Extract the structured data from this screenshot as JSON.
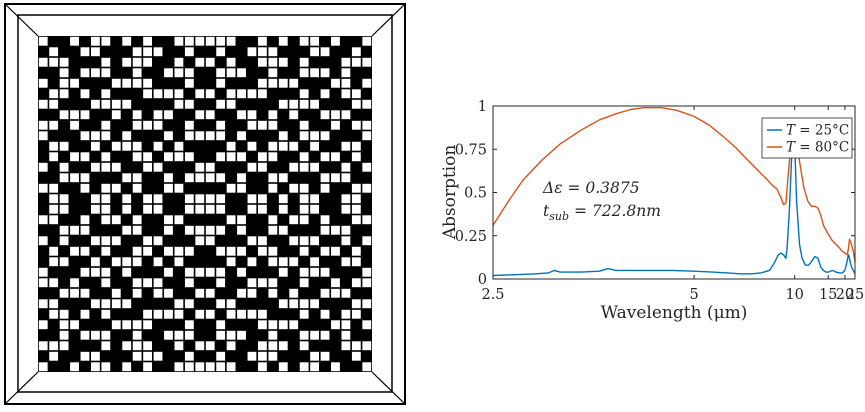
{
  "pattern_figure": {
    "grid_rows": 32,
    "grid_cols": 32,
    "cell_color": "#ffffff",
    "background_color": "#000000",
    "frame_color": "#000000"
  },
  "chart_data": {
    "type": "line",
    "title": "",
    "xlabel": "Wavelength (μm)",
    "ylabel": "Absorption",
    "xscale": "reciprocal",
    "xlim": [
      2.5,
      25
    ],
    "ylim": [
      0,
      1
    ],
    "xticks": [
      2.5,
      5,
      10,
      15,
      20,
      25
    ],
    "xtick_labels": [
      "2.5",
      "5",
      "10",
      "15",
      "20",
      "25"
    ],
    "yticks": [
      0,
      0.25,
      0.5,
      0.75,
      1
    ],
    "ytick_labels": [
      "0",
      "0.25",
      "0.5",
      "0.75",
      "1"
    ],
    "grid": false,
    "legend_position": "top-right",
    "legend": [
      {
        "T_label": "T",
        "value": " = 25°C",
        "color": "#0072BD"
      },
      {
        "T_label": "T",
        "value": " = 80°C",
        "color": "#D95319"
      }
    ],
    "annotations": {
      "line1": "Δε = 0.3875",
      "line2_sym": "t",
      "line2_sub": "sub",
      "line2_val": " = 722.8nm"
    },
    "series": [
      {
        "color": "#0072BD",
        "x": [
          2.5,
          2.65,
          2.8,
          2.9,
          2.95,
          3.0,
          3.1,
          3.2,
          3.4,
          3.5,
          3.6,
          3.8,
          4.0,
          4.5,
          5.0,
          5.5,
          6.0,
          6.5,
          7.0,
          7.5,
          8.0,
          8.3,
          8.6,
          8.8,
          9.0,
          9.2,
          9.3,
          9.5,
          9.7,
          9.85,
          10.0,
          10.2,
          10.5,
          10.8,
          11.2,
          11.6,
          12.0,
          12.5,
          13.0,
          13.5,
          14.0,
          14.5,
          15.0,
          16.0,
          17.0,
          18.0,
          19.0,
          20.0,
          20.5,
          21.0,
          21.5,
          22.0,
          22.5,
          23.0,
          24.0,
          25.0
        ],
        "y": [
          0.02,
          0.025,
          0.03,
          0.035,
          0.05,
          0.04,
          0.04,
          0.04,
          0.045,
          0.06,
          0.05,
          0.05,
          0.05,
          0.05,
          0.045,
          0.04,
          0.035,
          0.03,
          0.03,
          0.035,
          0.05,
          0.09,
          0.14,
          0.15,
          0.14,
          0.12,
          0.18,
          0.4,
          0.7,
          0.82,
          0.78,
          0.45,
          0.2,
          0.12,
          0.08,
          0.08,
          0.1,
          0.13,
          0.12,
          0.07,
          0.05,
          0.04,
          0.04,
          0.05,
          0.04,
          0.035,
          0.035,
          0.05,
          0.08,
          0.11,
          0.14,
          0.12,
          0.09,
          0.07,
          0.05,
          0.03
        ]
      },
      {
        "color": "#D95319",
        "x": [
          2.5,
          2.6,
          2.7,
          2.85,
          3.0,
          3.2,
          3.4,
          3.6,
          3.8,
          4.0,
          4.3,
          4.6,
          5.0,
          5.4,
          5.8,
          6.3,
          6.8,
          7.3,
          7.8,
          8.2,
          8.5,
          8.8,
          9.0,
          9.2,
          9.4,
          9.6,
          9.8,
          10.0,
          10.2,
          10.5,
          11.0,
          11.5,
          12.0,
          12.5,
          13.0,
          13.5,
          14.0,
          15.0,
          16.0,
          17.0,
          18.0,
          19.0,
          20.0,
          21.0,
          21.5,
          22.0,
          23.0,
          24.0,
          25.0
        ],
        "y": [
          0.31,
          0.45,
          0.57,
          0.69,
          0.78,
          0.86,
          0.92,
          0.955,
          0.98,
          0.99,
          0.99,
          0.975,
          0.94,
          0.89,
          0.83,
          0.76,
          0.69,
          0.63,
          0.58,
          0.54,
          0.52,
          0.47,
          0.43,
          0.44,
          0.6,
          0.75,
          0.85,
          0.93,
          0.86,
          0.68,
          0.53,
          0.45,
          0.42,
          0.42,
          0.41,
          0.37,
          0.31,
          0.26,
          0.22,
          0.2,
          0.18,
          0.16,
          0.15,
          0.14,
          0.18,
          0.23,
          0.2,
          0.16,
          0.1
        ]
      }
    ]
  }
}
